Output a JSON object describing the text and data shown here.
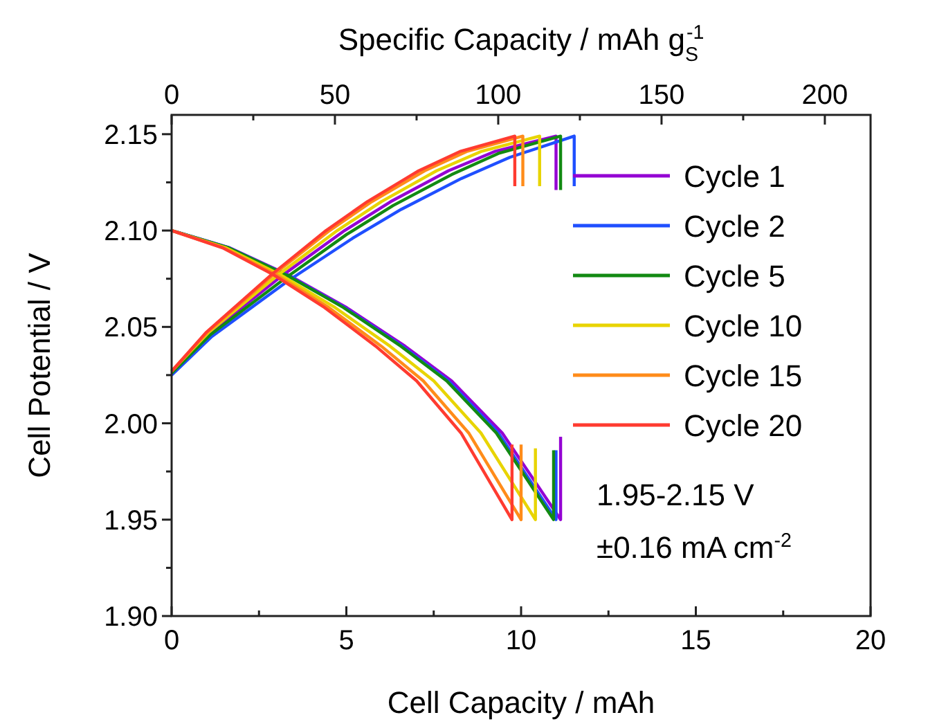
{
  "chart_data": {
    "type": "line",
    "xlabel": "Cell Capacity / mAh",
    "ylabel": "Cell Potential / V",
    "x2label": "Specific Capacity / mAh g$_{S}$$^{-1}$",
    "xlim": [
      0,
      20
    ],
    "xticks": [
      0,
      {
        "value": 2.5,
        "label": null
      },
      5,
      {
        "value": 7.5,
        "label": null
      },
      10,
      {
        "value": 12.5,
        "label": null
      },
      15,
      {
        "value": 17.5,
        "label": null
      },
      20
    ],
    "x2lim": [
      0,
      214
    ],
    "x2ticks": [
      0,
      {
        "value": 25,
        "label": null
      },
      50,
      {
        "value": 75,
        "label": null
      },
      100,
      {
        "value": 125,
        "label": null
      },
      150,
      {
        "value": 175,
        "label": null
      },
      200
    ],
    "ylim": [
      1.9,
      2.16
    ],
    "yticks": [
      {
        "value": 1.9,
        "label": "1.90"
      },
      {
        "value": 1.925,
        "label": null
      },
      1.95,
      {
        "value": 1.975,
        "label": null
      },
      {
        "value": 2.0,
        "label": "2.00"
      },
      {
        "value": 2.025,
        "label": null
      },
      2.05,
      {
        "value": 2.075,
        "label": null
      },
      {
        "value": 2.1,
        "label": "2.10"
      },
      {
        "value": 2.125,
        "label": null
      },
      2.15
    ],
    "legend": "top right",
    "line_style": "solid",
    "marker": "none",
    "annotations": [
      "1.95-2.15 V",
      "±0.16 mA cm$^{-2}$"
    ],
    "series": [
      {
        "name": "Cycle 1",
        "color": "#9400d3",
        "x": [
          0,
          1.1,
          3.19,
          4.95,
          6.27,
          7.92,
          9.24,
          11.0,
          11.0,
          null,
          0,
          1.67,
          3.34,
          5.01,
          6.68,
          8.01,
          9.46,
          11.13,
          11.13
        ],
        "values": [
          2.027,
          2.047,
          2.077,
          2.1,
          2.115,
          2.131,
          2.141,
          2.149,
          2.121,
          null,
          2.1,
          2.091,
          2.077,
          2.06,
          2.04,
          2.022,
          1.995,
          1.95,
          1.993
        ]
      },
      {
        "name": "Cycle 2",
        "color": "#1f4fff",
        "x": [
          0,
          1.15,
          3.34,
          5.18,
          6.57,
          8.29,
          9.68,
          11.52,
          11.52,
          null,
          0,
          1.65,
          3.3,
          4.95,
          6.6,
          7.92,
          9.35,
          11.0,
          11.0
        ],
        "values": [
          2.025,
          2.045,
          2.074,
          2.096,
          2.111,
          2.127,
          2.138,
          2.149,
          2.123,
          null,
          2.1,
          2.091,
          2.077,
          2.06,
          2.04,
          2.022,
          1.995,
          1.95,
          1.986
        ]
      },
      {
        "name": "Cycle 5",
        "color": "#128a12",
        "x": [
          0,
          1.11,
          3.23,
          5.01,
          6.34,
          8.01,
          9.35,
          11.13,
          11.13,
          null,
          0,
          1.64,
          3.28,
          4.92,
          6.56,
          7.87,
          9.29,
          10.93,
          10.93
        ],
        "values": [
          2.026,
          2.046,
          2.075,
          2.098,
          2.113,
          2.129,
          2.14,
          2.149,
          2.121,
          null,
          2.1,
          2.091,
          2.077,
          2.06,
          2.04,
          2.022,
          1.995,
          1.95,
          1.986
        ]
      },
      {
        "name": "Cycle 10",
        "color": "#e8d400",
        "x": [
          0,
          1.05,
          3.05,
          4.74,
          6.0,
          7.58,
          8.85,
          10.53,
          10.53,
          null,
          0,
          1.56,
          3.12,
          4.68,
          6.25,
          7.5,
          8.85,
          10.41,
          10.41
        ],
        "values": [
          2.027,
          2.047,
          2.077,
          2.1,
          2.115,
          2.131,
          2.141,
          2.149,
          2.123,
          null,
          2.1,
          2.091,
          2.077,
          2.06,
          2.04,
          2.022,
          1.995,
          1.95,
          1.987
        ]
      },
      {
        "name": "Cycle 15",
        "color": "#ff8c1a",
        "x": [
          0,
          1.01,
          2.91,
          4.52,
          5.73,
          7.24,
          8.44,
          10.05,
          10.05,
          null,
          0,
          1.5,
          3.0,
          4.5,
          6.0,
          7.2,
          8.5,
          10.0,
          10.0
        ],
        "values": [
          2.027,
          2.047,
          2.077,
          2.1,
          2.115,
          2.131,
          2.141,
          2.149,
          2.123,
          null,
          2.1,
          2.091,
          2.077,
          2.06,
          2.04,
          2.022,
          1.995,
          1.95,
          1.989
        ]
      },
      {
        "name": "Cycle 20",
        "color": "#ff3b30",
        "x": [
          0,
          0.98,
          2.85,
          4.42,
          5.6,
          7.07,
          8.25,
          9.82,
          9.82,
          null,
          0,
          1.46,
          2.92,
          4.38,
          5.84,
          7.01,
          8.28,
          9.74,
          9.74
        ],
        "values": [
          2.027,
          2.047,
          2.077,
          2.1,
          2.115,
          2.131,
          2.141,
          2.149,
          2.123,
          null,
          2.1,
          2.091,
          2.077,
          2.06,
          2.04,
          2.022,
          1.995,
          1.95,
          1.989
        ]
      }
    ]
  }
}
